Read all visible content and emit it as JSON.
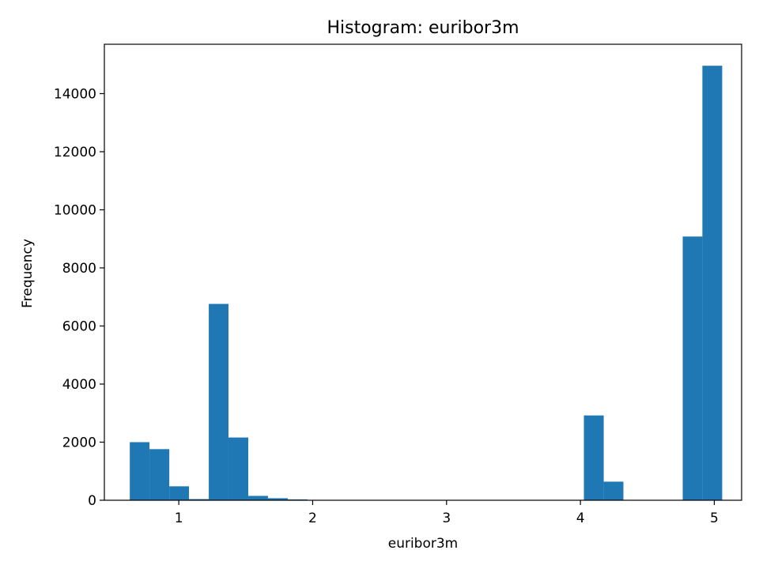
{
  "chart_data": {
    "type": "bar",
    "title": "Histogram: euribor3m",
    "xlabel": "euribor3m",
    "ylabel": "Frequency",
    "xlim": [
      0.444,
      5.204
    ],
    "ylim": [
      0,
      15700
    ],
    "x_ticks": [
      1,
      2,
      3,
      4,
      5
    ],
    "y_ticks": [
      0,
      2000,
      4000,
      6000,
      8000,
      10000,
      12000,
      14000
    ],
    "bar_color": "#1f77b4",
    "grid": false,
    "bins": [
      {
        "x0": 0.634,
        "x1": 0.781,
        "count": 2000
      },
      {
        "x0": 0.781,
        "x1": 0.929,
        "count": 1760
      },
      {
        "x0": 0.929,
        "x1": 1.076,
        "count": 480
      },
      {
        "x0": 1.076,
        "x1": 1.224,
        "count": 40
      },
      {
        "x0": 1.224,
        "x1": 1.371,
        "count": 6760
      },
      {
        "x0": 1.371,
        "x1": 1.519,
        "count": 2160
      },
      {
        "x0": 1.519,
        "x1": 1.666,
        "count": 150
      },
      {
        "x0": 1.666,
        "x1": 1.814,
        "count": 70
      },
      {
        "x0": 1.814,
        "x1": 1.961,
        "count": 30
      },
      {
        "x0": 1.961,
        "x1": 2.109,
        "count": 0
      },
      {
        "x0": 2.109,
        "x1": 2.256,
        "count": 0
      },
      {
        "x0": 2.256,
        "x1": 2.404,
        "count": 0
      },
      {
        "x0": 2.404,
        "x1": 2.551,
        "count": 0
      },
      {
        "x0": 2.551,
        "x1": 2.699,
        "count": 0
      },
      {
        "x0": 2.699,
        "x1": 2.846,
        "count": 0
      },
      {
        "x0": 2.846,
        "x1": 2.994,
        "count": 0
      },
      {
        "x0": 2.994,
        "x1": 3.141,
        "count": 0
      },
      {
        "x0": 3.141,
        "x1": 3.289,
        "count": 0
      },
      {
        "x0": 3.289,
        "x1": 3.436,
        "count": 0
      },
      {
        "x0": 3.436,
        "x1": 3.584,
        "count": 0
      },
      {
        "x0": 3.584,
        "x1": 3.731,
        "count": 0
      },
      {
        "x0": 3.731,
        "x1": 3.879,
        "count": 0
      },
      {
        "x0": 3.879,
        "x1": 4.026,
        "count": 0
      },
      {
        "x0": 4.026,
        "x1": 4.174,
        "count": 2920
      },
      {
        "x0": 4.174,
        "x1": 4.321,
        "count": 640
      },
      {
        "x0": 4.321,
        "x1": 4.469,
        "count": 0
      },
      {
        "x0": 4.469,
        "x1": 4.616,
        "count": 0
      },
      {
        "x0": 4.616,
        "x1": 4.764,
        "count": 0
      },
      {
        "x0": 4.764,
        "x1": 4.911,
        "count": 9080
      },
      {
        "x0": 4.911,
        "x1": 5.059,
        "count": 14960
      }
    ]
  }
}
